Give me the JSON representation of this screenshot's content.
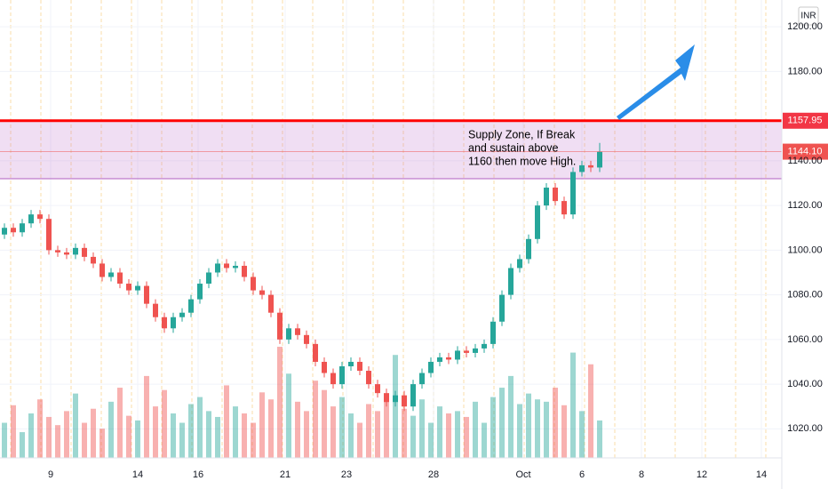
{
  "chart_data": {
    "type": "candlestick",
    "currency": "INR",
    "up_color": "#26a69a",
    "down_color": "#ef5350",
    "xlim": [
      0,
      88
    ],
    "xticks": [
      {
        "value": 5.7,
        "label": "9"
      },
      {
        "value": 15.5,
        "label": "14"
      },
      {
        "value": 22.3,
        "label": "16"
      },
      {
        "value": 32.1,
        "label": "21"
      },
      {
        "value": 39,
        "label": "23"
      },
      {
        "value": 48.8,
        "label": "28"
      },
      {
        "value": 58.9,
        "label": "Oct"
      },
      {
        "value": 65.5,
        "label": "6"
      },
      {
        "value": 72.2,
        "label": "8"
      },
      {
        "value": 79,
        "label": "12"
      },
      {
        "value": 85.7,
        "label": "14"
      }
    ],
    "ylim": [
      1007,
      1212
    ],
    "yticks": [
      {
        "value": 1020,
        "label": "1020.00"
      },
      {
        "value": 1040,
        "label": "1040.00"
      },
      {
        "value": 1060,
        "label": "1060.00"
      },
      {
        "value": 1080,
        "label": "1080.00"
      },
      {
        "value": 1100,
        "label": "1100.00"
      },
      {
        "value": 1120,
        "label": "1120.00"
      },
      {
        "value": 1140,
        "label": "1140.00"
      },
      {
        "value": 1180,
        "label": "1180.00"
      },
      {
        "value": 1200,
        "label": "1200.00"
      }
    ],
    "open": [
      1107,
      1110,
      1108,
      1112,
      1116,
      1114,
      1100,
      1099,
      1098,
      1101,
      1097,
      1094,
      1088,
      1090,
      1085,
      1082,
      1084,
      1076,
      1070,
      1065,
      1070,
      1072,
      1078,
      1085,
      1090,
      1094,
      1092,
      1093,
      1088,
      1082,
      1080,
      1072,
      1060,
      1065,
      1062,
      1058,
      1050,
      1045,
      1040,
      1048,
      1050,
      1046,
      1040,
      1036,
      1032,
      1035,
      1030,
      1040,
      1045,
      1050,
      1052,
      1051,
      1055,
      1054,
      1056,
      1058,
      1068,
      1080,
      1092,
      1096,
      1105,
      1120,
      1128,
      1122,
      1116,
      1135,
      1138,
      1137
    ],
    "high": [
      1112,
      1112,
      1114,
      1118,
      1118,
      1116,
      1102,
      1101,
      1103,
      1103,
      1099,
      1096,
      1092,
      1092,
      1087,
      1086,
      1086,
      1078,
      1072,
      1072,
      1074,
      1080,
      1087,
      1092,
      1096,
      1096,
      1095,
      1095,
      1090,
      1084,
      1082,
      1074,
      1067,
      1067,
      1064,
      1060,
      1052,
      1047,
      1050,
      1052,
      1052,
      1048,
      1042,
      1038,
      1037,
      1037,
      1042,
      1047,
      1052,
      1054,
      1054,
      1057,
      1057,
      1058,
      1060,
      1070,
      1082,
      1094,
      1098,
      1107,
      1122,
      1130,
      1130,
      1124,
      1137,
      1140,
      1140,
      1148
    ],
    "low": [
      1105,
      1106,
      1106,
      1110,
      1112,
      1098,
      1097,
      1096,
      1096,
      1095,
      1092,
      1086,
      1086,
      1083,
      1080,
      1080,
      1074,
      1068,
      1063,
      1063,
      1068,
      1070,
      1076,
      1083,
      1088,
      1090,
      1090,
      1086,
      1080,
      1078,
      1070,
      1058,
      1058,
      1060,
      1056,
      1048,
      1043,
      1038,
      1038,
      1046,
      1044,
      1038,
      1034,
      1030,
      1030,
      1028,
      1028,
      1038,
      1043,
      1048,
      1049,
      1049,
      1052,
      1052,
      1054,
      1056,
      1066,
      1078,
      1090,
      1094,
      1103,
      1118,
      1120,
      1114,
      1114,
      1133,
      1135,
      1135
    ],
    "close": [
      1110,
      1108,
      1112,
      1116,
      1114,
      1100,
      1099,
      1098,
      1101,
      1097,
      1094,
      1088,
      1090,
      1085,
      1082,
      1084,
      1076,
      1070,
      1065,
      1070,
      1072,
      1078,
      1085,
      1090,
      1094,
      1092,
      1093,
      1088,
      1082,
      1080,
      1072,
      1060,
      1065,
      1062,
      1058,
      1050,
      1045,
      1040,
      1048,
      1050,
      1046,
      1040,
      1036,
      1032,
      1035,
      1030,
      1040,
      1045,
      1050,
      1052,
      1051,
      1055,
      1054,
      1056,
      1058,
      1068,
      1080,
      1092,
      1096,
      1105,
      1120,
      1128,
      1122,
      1116,
      1135,
      1138,
      1137,
      1144.1
    ],
    "volume": [
      30,
      45,
      22,
      38,
      50,
      35,
      28,
      40,
      55,
      30,
      42,
      25,
      48,
      60,
      36,
      32,
      70,
      44,
      58,
      38,
      30,
      46,
      52,
      40,
      35,
      62,
      44,
      38,
      30,
      56,
      50,
      95,
      72,
      48,
      40,
      66,
      58,
      44,
      52,
      38,
      30,
      46,
      40,
      55,
      88,
      42,
      36,
      50,
      30,
      44,
      38,
      40,
      35,
      48,
      30,
      52,
      60,
      70,
      46,
      55,
      50,
      48,
      60,
      45,
      90,
      40,
      80,
      32
    ],
    "zone": {
      "top": 1157.95,
      "bottom": 1132
    },
    "resistance": 1157.95,
    "last_price": {
      "value": 1144.1,
      "label": "1144.10"
    },
    "annotation": [
      "Supply Zone, If Break",
      "and sustain above",
      "1160 then move High."
    ]
  }
}
